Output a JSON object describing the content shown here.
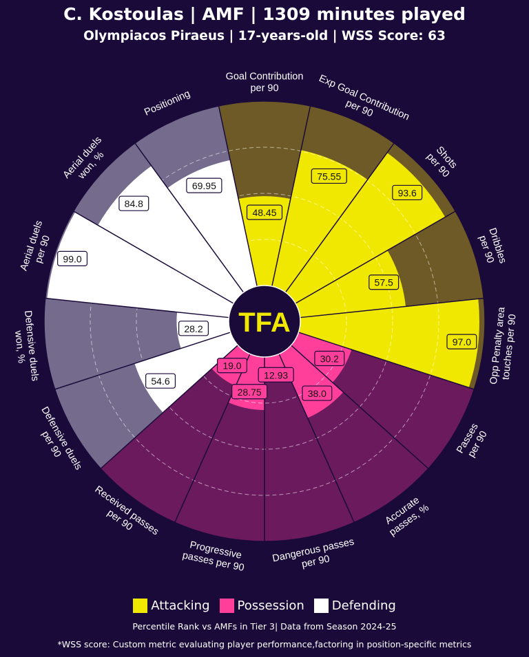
{
  "header": {
    "title": "C. Kostoulas | AMF | 1309 minutes played",
    "subtitle": "Olympiacos Piraeus | 17-years-old | WSS Score: 63"
  },
  "logo_text": "TFA",
  "colors": {
    "background": "#1a0a3a",
    "attacking": "#f0e800",
    "possession": "#ff3f9a",
    "defending": "#ffffff",
    "attacking_bg": "#6e5a26",
    "possession_bg": "#6b1a5e",
    "defending_bg": "#756b8c"
  },
  "legend": [
    {
      "label": "Attacking",
      "color": "#f0e800"
    },
    {
      "label": "Possession",
      "color": "#ff3f9a"
    },
    {
      "label": "Defending",
      "color": "#ffffff"
    }
  ],
  "footer": {
    "note": "Percentile Rank vs AMFs in Tier 3| Data from Season 2024-25",
    "wss_note": "*WSS score: Custom metric evaluating player performance,factoring in position-specific metrics"
  },
  "chart_data": {
    "type": "polar-bar",
    "rlim": [
      0,
      100
    ],
    "categories": [
      {
        "label": "Goal Contribution per 90",
        "group": "Attacking",
        "value": 48.45
      },
      {
        "label": "Exp Goal Contribution per 90",
        "group": "Attacking",
        "value": 75.55
      },
      {
        "label": "Shots per 90",
        "group": "Attacking",
        "value": 93.6
      },
      {
        "label": "Dribbles per 90",
        "group": "Attacking",
        "value": 57.5
      },
      {
        "label": "Opp Penalty area touches per 90",
        "group": "Attacking",
        "value": 97.0
      },
      {
        "label": "Passes per 90",
        "group": "Possession",
        "value": 30.2
      },
      {
        "label": "Accurate passes, %",
        "group": "Possession",
        "value": 38.0
      },
      {
        "label": "Dangerous passes per 90",
        "group": "Possession",
        "value": 12.93
      },
      {
        "label": "Progressive passes per 90",
        "group": "Possession",
        "value": 28.75
      },
      {
        "label": "Received passes per 90",
        "group": "Possession",
        "value": 19.0
      },
      {
        "label": "Defensive duels per 90",
        "group": "Defending",
        "value": 54.6
      },
      {
        "label": "Defensive duels won, %",
        "group": "Defending",
        "value": 28.2
      },
      {
        "label": "Aerial duels per 90",
        "group": "Defending",
        "value": 99.0
      },
      {
        "label": "Aerial duels won, %",
        "group": "Defending",
        "value": 84.8
      },
      {
        "label": "Positioning",
        "group": "Defending",
        "value": 69.95
      }
    ],
    "value_labels": [
      "48.45",
      "75.55",
      "93.6",
      "57.5",
      "97.0",
      "30.2",
      "38.0",
      "12.93",
      "28.75",
      "19.0",
      "54.6",
      "28.2",
      "99.0",
      "84.8",
      "69.95"
    ],
    "axis_labels": [
      [
        "Goal Contribution",
        "per 90"
      ],
      [
        "Exp Goal Contribution",
        "per 90"
      ],
      [
        "Shots",
        "per 90"
      ],
      [
        "Dribbles",
        "per 90"
      ],
      [
        "Opp Penalty area",
        "touches per 90"
      ],
      [
        "Passes",
        "per 90"
      ],
      [
        "Accurate",
        "passes, %"
      ],
      [
        "Dangerous passes",
        "per 90"
      ],
      [
        "Progressive",
        "passes per 90"
      ],
      [
        "Received passes",
        "per 90"
      ],
      [
        "Defensive duels",
        "per 90"
      ],
      [
        "Defensive duels",
        "won, %"
      ],
      [
        "Aerial duels",
        "per 90"
      ],
      [
        "Aerial duels",
        "won, %"
      ],
      [
        "Positioning"
      ]
    ],
    "grid_rings": [
      25,
      50,
      75
    ]
  }
}
